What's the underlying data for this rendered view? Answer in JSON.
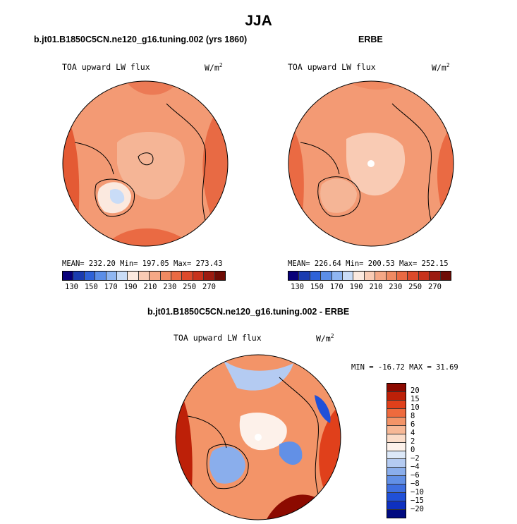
{
  "title": "JJA",
  "panels": {
    "model": {
      "title": "b.jt01.B1850C5CN.ne120_g16.tuning.002 (yrs 1860)",
      "field": "TOA upward LW flux",
      "units": "W/m",
      "units_exp": "2",
      "stats": "MEAN= 232.20  Min= 197.05  Max= 273.43"
    },
    "obs": {
      "title": "ERBE",
      "field": "TOA upward LW flux",
      "units": "W/m",
      "units_exp": "2",
      "stats": "MEAN= 226.64  Min= 200.53  Max= 252.15"
    },
    "diff": {
      "title": "b.jt01.B1850C5CN.ne120_g16.tuning.002 - ERBE",
      "field": "TOA upward LW flux",
      "units": "W/m",
      "units_exp": "2",
      "stats": "MIN = -16.72 MAX =  31.69"
    }
  },
  "abs_colorbar": {
    "colors": [
      "#08007a",
      "#1a3cb0",
      "#2e62d8",
      "#5b8ee8",
      "#8fb6f2",
      "#c9dcf7",
      "#fbe9df",
      "#f9cbb4",
      "#f5a886",
      "#f08a62",
      "#ea6a43",
      "#dd4a2b",
      "#c8321c",
      "#9c1b10",
      "#6e0b05"
    ],
    "tick_labels": [
      "130",
      "150",
      "170",
      "190",
      "210",
      "230",
      "250",
      "270"
    ]
  },
  "diff_colorbar": {
    "colors": [
      "#8c0a00",
      "#bd2008",
      "#e0401b",
      "#ee6a3d",
      "#f39468",
      "#f7b896",
      "#fbdcc8",
      "#fdf1ea",
      "#dce8f8",
      "#b4cbf2",
      "#8aaeec",
      "#6290e6",
      "#3f6fe0",
      "#2050d8",
      "#0e30c0",
      "#000a80"
    ],
    "tick_labels": [
      "20",
      "15",
      "10",
      "8",
      "6",
      "4",
      "2",
      "0",
      "−2",
      "−4",
      "−6",
      "−8",
      "−10",
      "−15",
      "−20"
    ]
  }
}
